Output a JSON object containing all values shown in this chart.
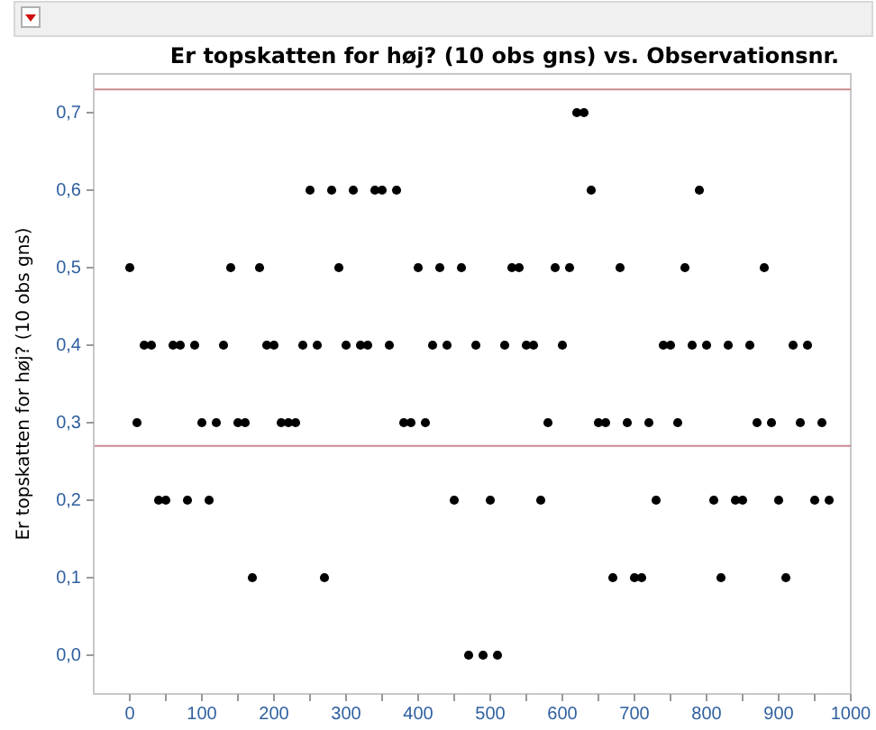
{
  "chart_data": {
    "type": "scatter",
    "title": "Er topskatten for høj? (10 obs gns) vs. Observationsnr.",
    "ylabel": "Er topskatten for høj? (10 obs gns)",
    "x": [
      0,
      10,
      20,
      30,
      40,
      50,
      60,
      70,
      80,
      90,
      100,
      110,
      120,
      130,
      140,
      150,
      160,
      170,
      180,
      190,
      200,
      210,
      220,
      230,
      240,
      250,
      260,
      270,
      280,
      290,
      300,
      310,
      320,
      330,
      340,
      350,
      360,
      370,
      380,
      390,
      400,
      410,
      420,
      430,
      440,
      450,
      460,
      470,
      480,
      490,
      500,
      510,
      520,
      530,
      540,
      550,
      560,
      570,
      580,
      590,
      600,
      610,
      620,
      630,
      640,
      650,
      660,
      670,
      680,
      690,
      700,
      710,
      720,
      730,
      740,
      750,
      760,
      770,
      780,
      790,
      800,
      810,
      820,
      830,
      840,
      850,
      860,
      870,
      880,
      890,
      900,
      910,
      920,
      930,
      940,
      950,
      960,
      970
    ],
    "values": [
      0.5,
      0.3,
      0.4,
      0.4,
      0.2,
      0.2,
      0.4,
      0.4,
      0.2,
      0.4,
      0.3,
      0.2,
      0.3,
      0.4,
      0.5,
      0.3,
      0.3,
      0.1,
      0.5,
      0.4,
      0.4,
      0.3,
      0.3,
      0.3,
      0.4,
      0.6,
      0.4,
      0.1,
      0.6,
      0.5,
      0.4,
      0.6,
      0.4,
      0.4,
      0.6,
      0.6,
      0.4,
      0.6,
      0.3,
      0.3,
      0.5,
      0.3,
      0.4,
      0.5,
      0.4,
      0.2,
      0.5,
      0,
      0.4,
      0,
      0.2,
      0,
      0.4,
      0.5,
      0.5,
      0.4,
      0.4,
      0.2,
      0.3,
      0.5,
      0.4,
      0.5,
      0.7,
      0.7,
      0.6,
      0.3,
      0.3,
      0.1,
      0.5,
      0.3,
      0.1,
      0.1,
      0.3,
      0.2,
      0.4,
      0.4,
      0.3,
      0.5,
      0.4,
      0.6,
      0.4,
      0.2,
      0.1,
      0.4,
      0.2,
      0.2,
      0.4,
      0.3,
      0.5,
      0.3,
      0.2,
      0.1,
      0.4,
      0.3,
      0.4,
      0.2,
      0.3,
      0.2
    ],
    "color": "#000000",
    "marker": "circle",
    "xlim": [
      -50,
      1000
    ],
    "ylim": [
      -0.05,
      0.75
    ],
    "xticks": [
      0,
      {
        "value": 50,
        "label": null
      },
      100,
      {
        "value": 150,
        "label": null
      },
      200,
      {
        "value": 250,
        "label": null
      },
      300,
      {
        "value": 350,
        "label": null
      },
      400,
      {
        "value": 450,
        "label": null
      },
      500,
      {
        "value": 550,
        "label": null
      },
      600,
      {
        "value": 650,
        "label": null
      },
      700,
      {
        "value": 750,
        "label": null
      },
      800,
      {
        "value": 850,
        "label": null
      },
      900,
      {
        "value": 950,
        "label": null
      },
      1000
    ],
    "yticks": [
      {
        "value": 0,
        "label": "0,0"
      },
      {
        "value": 0.1,
        "label": "0,1"
      },
      {
        "value": 0.2,
        "label": "0,2"
      },
      {
        "value": 0.3,
        "label": "0,3"
      },
      {
        "value": 0.4,
        "label": "0,4"
      },
      {
        "value": 0.5,
        "label": "0,5"
      },
      {
        "value": 0.6,
        "label": "0,6"
      },
      {
        "value": 0.7,
        "label": "0,7"
      }
    ],
    "ref_lines": [
      {
        "axis": "y",
        "value": 0.73,
        "color": "#c98a90"
      },
      {
        "axis": "y",
        "value": 0.27,
        "color": "#c98a90"
      }
    ],
    "grid": false
  }
}
